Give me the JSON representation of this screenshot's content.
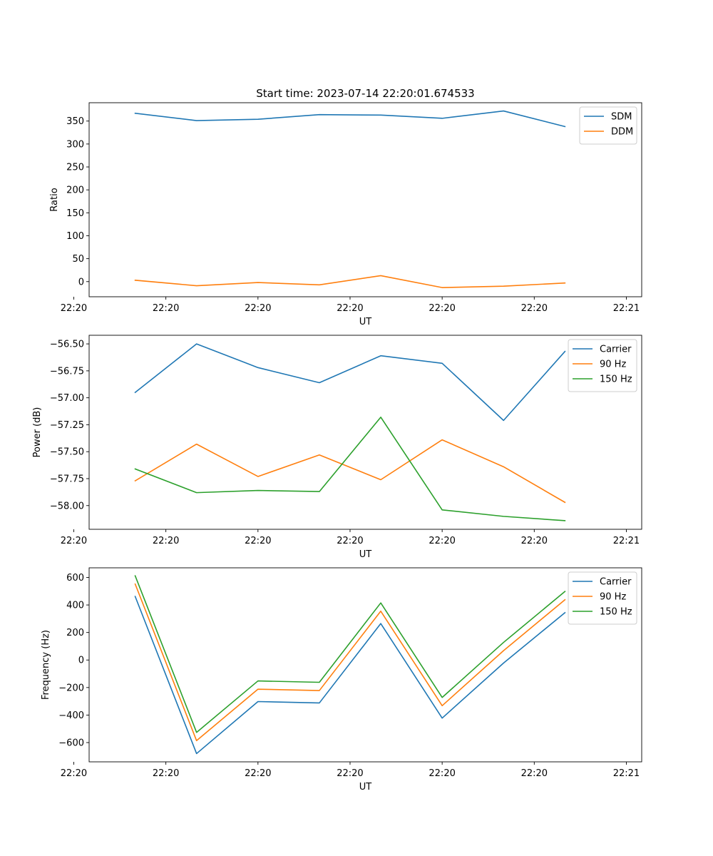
{
  "title": "Start time: 2023-07-14 22:20:01.674533",
  "chart_data": [
    {
      "type": "line",
      "ylabel": "Ratio",
      "xlabel": "UT",
      "x": [
        1,
        2,
        3,
        4,
        5,
        6,
        7,
        8
      ],
      "xlim": [
        0.25,
        9.25
      ],
      "xticks": [
        0.0,
        1.5,
        3.0,
        4.5,
        6.0,
        7.5,
        9.0
      ],
      "xtick_labels": [
        "22:20",
        "22:20",
        "22:20",
        "22:20",
        "22:20",
        "22:20",
        "22:21"
      ],
      "ylim": [
        -33,
        390
      ],
      "yticks": [
        0,
        50,
        100,
        150,
        200,
        250,
        300,
        350
      ],
      "ytick_labels": [
        "0",
        "50",
        "100",
        "150",
        "200",
        "250",
        "300",
        "350"
      ],
      "legend": "top-right",
      "series": [
        {
          "name": "SDM",
          "color": "#1f77b4",
          "values": [
            367,
            351,
            354,
            364,
            363,
            356,
            372,
            338
          ]
        },
        {
          "name": "DDM",
          "color": "#ff7f0e",
          "values": [
            3,
            -9,
            -2,
            -7,
            13,
            -13,
            -10,
            -3
          ]
        }
      ]
    },
    {
      "type": "line",
      "ylabel": "Power (dB)",
      "xlabel": "UT",
      "x": [
        1,
        2,
        3,
        4,
        5,
        6,
        7,
        8
      ],
      "xlim": [
        0.25,
        9.25
      ],
      "xticks": [
        0.0,
        1.5,
        3.0,
        4.5,
        6.0,
        7.5,
        9.0
      ],
      "xtick_labels": [
        "22:20",
        "22:20",
        "22:20",
        "22:20",
        "22:20",
        "22:20",
        "22:21"
      ],
      "ylim": [
        -58.22,
        -56.42
      ],
      "yticks": [
        -58.0,
        -57.75,
        -57.5,
        -57.25,
        -57.0,
        -56.75,
        -56.5
      ],
      "ytick_labels": [
        "−58.00",
        "−57.75",
        "−57.50",
        "−57.25",
        "−57.00",
        "−56.75",
        "−56.50"
      ],
      "legend": "top-right",
      "series": [
        {
          "name": "Carrier",
          "color": "#1f77b4",
          "values": [
            -56.95,
            -56.5,
            -56.72,
            -56.86,
            -56.61,
            -56.68,
            -57.21,
            -56.57
          ]
        },
        {
          "name": "90 Hz",
          "color": "#ff7f0e",
          "values": [
            -57.77,
            -57.43,
            -57.73,
            -57.53,
            -57.76,
            -57.39,
            -57.64,
            -57.97
          ]
        },
        {
          "name": "150 Hz",
          "color": "#2ca02c",
          "values": [
            -57.66,
            -57.88,
            -57.86,
            -57.87,
            -57.18,
            -58.04,
            -58.1,
            -58.14
          ]
        }
      ]
    },
    {
      "type": "line",
      "ylabel": "Frequency (Hz)",
      "xlabel": "UT",
      "x": [
        1,
        2,
        3,
        4,
        5,
        6,
        7,
        8
      ],
      "xlim": [
        0.25,
        9.25
      ],
      "xticks": [
        0.0,
        1.5,
        3.0,
        4.5,
        6.0,
        7.5,
        9.0
      ],
      "xtick_labels": [
        "22:20",
        "22:20",
        "22:20",
        "22:20",
        "22:20",
        "22:20",
        "22:21"
      ],
      "ylim": [
        -740,
        670
      ],
      "yticks": [
        -600,
        -400,
        -200,
        0,
        200,
        400,
        600
      ],
      "ytick_labels": [
        "−600",
        "−400",
        "−200",
        "0",
        "200",
        "400",
        "600"
      ],
      "legend": "top-right",
      "series": [
        {
          "name": "Carrier",
          "color": "#1f77b4",
          "values": [
            462,
            -680,
            -302,
            -312,
            265,
            -422,
            -22,
            344
          ]
        },
        {
          "name": "90 Hz",
          "color": "#ff7f0e",
          "values": [
            552,
            -586,
            -212,
            -222,
            355,
            -332,
            68,
            438
          ]
        },
        {
          "name": "150 Hz",
          "color": "#2ca02c",
          "values": [
            612,
            -526,
            -152,
            -162,
            415,
            -272,
            128,
            498
          ]
        }
      ]
    }
  ]
}
